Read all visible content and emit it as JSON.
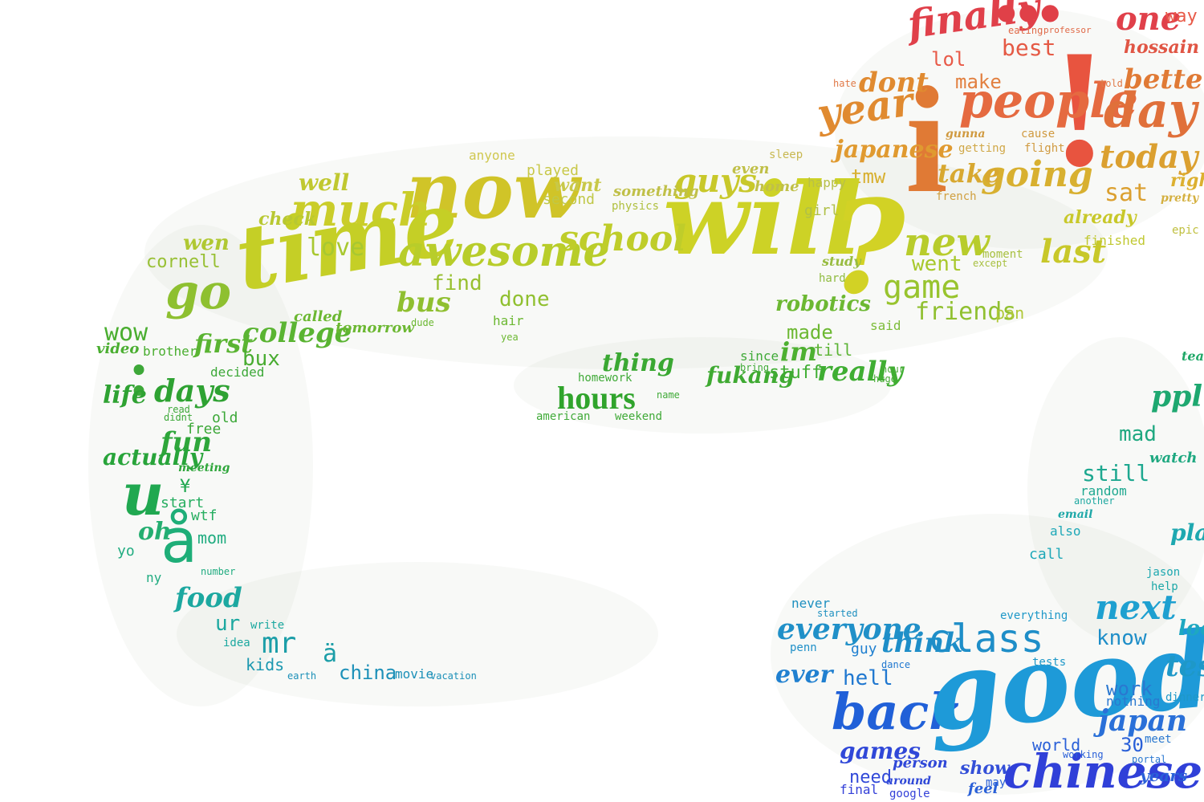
{
  "words": [
    {
      "t": "finally",
      "c": "#e0404a",
      "f": "s"
    },
    {
      "t": "•••",
      "c": "#e04048",
      "f": "b"
    },
    {
      "t": "one",
      "c": "#e0404a",
      "f": "s"
    },
    {
      "t": "way",
      "c": "#e85a48",
      "f": "m"
    },
    {
      "t": "best",
      "c": "#e55a45",
      "f": "m"
    },
    {
      "t": "lol",
      "c": "#e85a48",
      "f": "m"
    },
    {
      "t": "hossain",
      "c": "#e05544",
      "f": "s"
    },
    {
      "t": "!",
      "c": "#e8543f",
      "f": "b"
    },
    {
      "t": "i",
      "c": "#e07a35",
      "f": "b"
    },
    {
      "t": "people",
      "c": "#e56a40",
      "f": "s"
    },
    {
      "t": "day",
      "c": "#e0703a",
      "f": "s"
    },
    {
      "t": "better",
      "c": "#e07a35",
      "f": "s"
    },
    {
      "t": "make",
      "c": "#e28040",
      "f": "m"
    },
    {
      "t": "dont",
      "c": "#e08a30",
      "f": "s"
    },
    {
      "t": "year",
      "c": "#e08a30",
      "f": "s"
    },
    {
      "t": "japanese",
      "c": "#e09a30",
      "f": "s"
    },
    {
      "t": "tmw",
      "c": "#d8b030",
      "f": "m"
    },
    {
      "t": "going",
      "c": "#d8b030",
      "f": "s"
    },
    {
      "t": "take",
      "c": "#d8a830",
      "f": "s"
    },
    {
      "t": "today",
      "c": "#dba030",
      "f": "s"
    },
    {
      "t": "sat",
      "c": "#dba030",
      "f": "m"
    },
    {
      "t": "right",
      "c": "#dcb030",
      "f": "s"
    },
    {
      "t": "now",
      "c": "#d0c428",
      "f": "s"
    },
    {
      "t": "much",
      "c": "#cacd2a",
      "f": "s"
    },
    {
      "t": "time",
      "c": "#c5cf26",
      "f": "s"
    },
    {
      "t": "will",
      "c": "#cdd226",
      "f": "s"
    },
    {
      "t": "?",
      "c": "#d2d225",
      "f": "s"
    },
    {
      "t": "awesome",
      "c": "#b8cd2a",
      "f": "s"
    },
    {
      "t": "school",
      "c": "#bfcd2a",
      "f": "s"
    },
    {
      "t": "guys",
      "c": "#c8c82a",
      "f": "s"
    },
    {
      "t": "new",
      "c": "#b8cc2c",
      "f": "s"
    },
    {
      "t": "last",
      "c": "#c8c82a",
      "f": "s"
    },
    {
      "t": "already",
      "c": "#c8c82a",
      "f": "s"
    },
    {
      "t": "finished",
      "c": "#c0c830",
      "f": "m"
    },
    {
      "t": "went",
      "c": "#a8c82c",
      "f": "m"
    },
    {
      "t": "game",
      "c": "#98c42e",
      "f": "m"
    },
    {
      "t": "friends",
      "c": "#90c030",
      "f": "m"
    },
    {
      "t": "pan",
      "c": "#b0c838",
      "f": "m"
    },
    {
      "t": "love",
      "c": "#a8c830",
      "f": "m"
    },
    {
      "t": "well",
      "c": "#c0c830",
      "f": "s"
    },
    {
      "t": "check",
      "c": "#b8c832",
      "f": "s"
    },
    {
      "t": "wen",
      "c": "#b0c832",
      "f": "s"
    },
    {
      "t": "cornell",
      "c": "#98c034",
      "f": "m"
    },
    {
      "t": "go",
      "c": "#8ec030",
      "f": "s"
    },
    {
      "t": "find",
      "c": "#98c030",
      "f": "m"
    },
    {
      "t": "done",
      "c": "#90c030",
      "f": "m"
    },
    {
      "t": "bus",
      "c": "#8fbf30",
      "f": "s"
    },
    {
      "t": "played",
      "c": "#c8c848",
      "f": "m"
    },
    {
      "t": "anyone",
      "c": "#d0c850",
      "f": "m"
    },
    {
      "t": "want",
      "c": "#c8c848",
      "f": "s"
    },
    {
      "t": "second",
      "c": "#c0c848",
      "f": "m"
    },
    {
      "t": "something",
      "c": "#c0c048",
      "f": "s"
    },
    {
      "t": "physics",
      "c": "#b0c040",
      "f": "m"
    },
    {
      "t": "even",
      "c": "#c0c048",
      "f": "s"
    },
    {
      "t": "home",
      "c": "#c0c048",
      "f": "s"
    },
    {
      "t": "happy",
      "c": "#b8c048",
      "f": "m"
    },
    {
      "t": "girl",
      "c": "#b0c048",
      "f": "m"
    },
    {
      "t": "sleep",
      "c": "#c8b850",
      "f": "m"
    },
    {
      "t": "getting",
      "c": "#d0a848",
      "f": "m"
    },
    {
      "t": "french",
      "c": "#d0a040",
      "f": "m"
    },
    {
      "t": "flight",
      "c": "#d09a40",
      "f": "m"
    },
    {
      "t": "gunna",
      "c": "#d09a40",
      "f": "s"
    },
    {
      "t": "cause",
      "c": "#d09a40",
      "f": "m"
    },
    {
      "t": "eating",
      "c": "#e06a48",
      "f": "m"
    },
    {
      "t": "professor",
      "c": "#e06a48",
      "f": "m"
    },
    {
      "t": "told",
      "c": "#e07a48",
      "f": "m"
    },
    {
      "t": "hate",
      "c": "#e07a48",
      "f": "m"
    },
    {
      "t": "pretty",
      "c": "#d4b040",
      "f": "s"
    },
    {
      "t": "epic",
      "c": "#c0c040",
      "f": "m"
    },
    {
      "t": "moment",
      "c": "#a8c040",
      "f": "m"
    },
    {
      "t": "except",
      "c": "#a8c040",
      "f": "m"
    },
    {
      "t": "study",
      "c": "#98bc40",
      "f": "s"
    },
    {
      "t": "hard",
      "c": "#90bc40",
      "f": "m"
    },
    {
      "t": "robotics",
      "c": "#6cb832",
      "f": "s"
    },
    {
      "t": "made",
      "c": "#6cb832",
      "f": "m"
    },
    {
      "t": "said",
      "c": "#7cbc38",
      "f": "m"
    },
    {
      "t": "im",
      "c": "#4db030",
      "f": "s"
    },
    {
      "t": "till",
      "c": "#5cb435",
      "f": "m"
    },
    {
      "t": "really",
      "c": "#3fae32",
      "f": "s"
    },
    {
      "t": "stuff",
      "c": "#3fae32",
      "f": "m"
    },
    {
      "t": "fukang",
      "c": "#3faa32",
      "f": "s"
    },
    {
      "t": "thing",
      "c": "#3aa832",
      "f": "s"
    },
    {
      "t": "homework",
      "c": "#40aa38",
      "f": "m"
    },
    {
      "t": "hours",
      "c": "#30a42c",
      "f": "b"
    },
    {
      "t": "american",
      "c": "#40aa38",
      "f": "m"
    },
    {
      "t": "weekend",
      "c": "#40aa38",
      "f": "m"
    },
    {
      "t": "name",
      "c": "#40aa38",
      "f": "m"
    },
    {
      "t": "since",
      "c": "#40aa38",
      "f": "m"
    },
    {
      "t": "bring",
      "c": "#40aa38",
      "f": "m"
    },
    {
      "t": "hour",
      "c": "#4aac38",
      "f": "m"
    },
    {
      "t": "huge",
      "c": "#4aac38",
      "f": "m"
    },
    {
      "t": "college",
      "c": "#5ab432",
      "f": "s"
    },
    {
      "t": "first",
      "c": "#5ab432",
      "f": "s"
    },
    {
      "t": "tomorrow",
      "c": "#6cb832",
      "f": "s"
    },
    {
      "t": "called",
      "c": "#6cb832",
      "f": "s"
    },
    {
      "t": "hair",
      "c": "#6cb832",
      "f": "m"
    },
    {
      "t": "yea",
      "c": "#6cb832",
      "f": "m"
    },
    {
      "t": "dude",
      "c": "#6cb832",
      "f": "m"
    },
    {
      "t": "bux",
      "c": "#48ac30",
      "f": "m"
    },
    {
      "t": "wow",
      "c": "#4aae30",
      "f": "m"
    },
    {
      "t": "brother",
      "c": "#4aae30",
      "f": "m"
    },
    {
      "t": "video",
      "c": "#4aae30",
      "f": "s"
    },
    {
      "t": ":",
      "c": "#3da838",
      "f": "b"
    },
    {
      "t": "days",
      "c": "#2ea232",
      "f": "s"
    },
    {
      "t": "life",
      "c": "#2ea232",
      "f": "s"
    },
    {
      "t": "decided",
      "c": "#3ca838",
      "f": "m"
    },
    {
      "t": "old",
      "c": "#3ca838",
      "f": "m"
    },
    {
      "t": "free",
      "c": "#3ca838",
      "f": "m"
    },
    {
      "t": "didnt",
      "c": "#3ca838",
      "f": "m"
    },
    {
      "t": "read",
      "c": "#3ca838",
      "f": "m"
    },
    {
      "t": "fun",
      "c": "#2ea63a",
      "f": "s"
    },
    {
      "t": "meeting",
      "c": "#2ea63a",
      "f": "s"
    },
    {
      "t": "actually",
      "c": "#28a43a",
      "f": "s"
    },
    {
      "t": "u",
      "c": "#20a850",
      "f": "s"
    },
    {
      "t": "¥",
      "c": "#20a850",
      "f": "m"
    },
    {
      "t": "start",
      "c": "#26ae60",
      "f": "m"
    },
    {
      "t": "wtf",
      "c": "#26ae60",
      "f": "m"
    },
    {
      "t": "oh",
      "c": "#24ae70",
      "f": "s"
    },
    {
      "t": "å",
      "c": "#1eae78",
      "f": "m"
    },
    {
      "t": "mom",
      "c": "#20ac80",
      "f": "m"
    },
    {
      "t": "yo",
      "c": "#20ac80",
      "f": "m"
    },
    {
      "t": "ny",
      "c": "#20ac80",
      "f": "m"
    },
    {
      "t": "number",
      "c": "#20ac80",
      "f": "m"
    },
    {
      "t": "food",
      "c": "#1ca8a0",
      "f": "s"
    },
    {
      "t": "ur",
      "c": "#1ca8a0",
      "f": "m"
    },
    {
      "t": "write",
      "c": "#1ca8a0",
      "f": "m"
    },
    {
      "t": "idea",
      "c": "#1ca8a0",
      "f": "m"
    },
    {
      "t": "mr",
      "c": "#1c9ea8",
      "f": "m"
    },
    {
      "t": "ä",
      "c": "#1c9ea8",
      "f": "m"
    },
    {
      "t": "kids",
      "c": "#1c98b0",
      "f": "m"
    },
    {
      "t": "china",
      "c": "#1c90b8",
      "f": "m"
    },
    {
      "t": "movie",
      "c": "#1c90b8",
      "f": "m"
    },
    {
      "t": "vacation",
      "c": "#1c90b8",
      "f": "m"
    },
    {
      "t": "earth",
      "c": "#1c90b8",
      "f": "m"
    },
    {
      "t": "never",
      "c": "#1e90c0",
      "f": "m"
    },
    {
      "t": "started",
      "c": "#1e90c0",
      "f": "m"
    },
    {
      "t": "everyone",
      "c": "#2090c8",
      "f": "s"
    },
    {
      "t": "penn",
      "c": "#2090c8",
      "f": "m"
    },
    {
      "t": "think",
      "c": "#1e8ec8",
      "f": "s"
    },
    {
      "t": "class",
      "c": "#1e8ec8",
      "f": "m"
    },
    {
      "t": "ever",
      "c": "#2080d0",
      "f": "s"
    },
    {
      "t": "guy",
      "c": "#2080d0",
      "f": "m"
    },
    {
      "t": "hell",
      "c": "#2078d0",
      "f": "m"
    },
    {
      "t": "dance",
      "c": "#2078d0",
      "f": "m"
    },
    {
      "t": "back",
      "c": "#2060d8",
      "f": "s"
    },
    {
      "t": "good",
      "c": "#1e9ad8",
      "f": "s"
    },
    {
      "t": "games",
      "c": "#3048d8",
      "f": "s"
    },
    {
      "t": "need",
      "c": "#3048d8",
      "f": "m"
    },
    {
      "t": "person",
      "c": "#3048d8",
      "f": "s"
    },
    {
      "t": "around",
      "c": "#3048d8",
      "f": "s"
    },
    {
      "t": "final",
      "c": "#3440d8",
      "f": "m"
    },
    {
      "t": "google",
      "c": "#3440d8",
      "f": "m"
    },
    {
      "t": "show",
      "c": "#3450d8",
      "f": "s"
    },
    {
      "t": "chinese",
      "c": "#3040d8",
      "f": "s"
    },
    {
      "t": "world",
      "c": "#2a60d8",
      "f": "m"
    },
    {
      "t": "30",
      "c": "#2a60d8",
      "f": "m"
    },
    {
      "t": "working",
      "c": "#2a60d8",
      "f": "m"
    },
    {
      "t": "feel",
      "c": "#2a60d8",
      "f": "s"
    },
    {
      "t": "may",
      "c": "#2a60d8",
      "f": "m"
    },
    {
      "t": "years",
      "c": "#2a60d8",
      "f": "s"
    },
    {
      "t": "japan",
      "c": "#2a70d8",
      "f": "s"
    },
    {
      "t": "work",
      "c": "#2a78d0",
      "f": "m"
    },
    {
      "t": "nothing",
      "c": "#2a78d0",
      "f": "m"
    },
    {
      "t": "meet",
      "c": "#2a78d0",
      "f": "m"
    },
    {
      "t": "portal",
      "c": "#2a78d0",
      "f": "m"
    },
    {
      "t": "know",
      "c": "#1e8ec8",
      "f": "m"
    },
    {
      "t": "next",
      "c": "#1ea0d0",
      "f": "s"
    },
    {
      "t": "test",
      "c": "#1e98c8",
      "f": "s"
    },
    {
      "t": "dinner",
      "c": "#1e98c8",
      "f": "m"
    },
    {
      "t": "tests",
      "c": "#1e98c8",
      "f": "m"
    },
    {
      "t": "everything",
      "c": "#1e98c8",
      "f": "m"
    },
    {
      "t": "look",
      "c": "#1ea8c0",
      "f": "s"
    },
    {
      "t": "call",
      "c": "#1ea8b8",
      "f": "m"
    },
    {
      "t": "also",
      "c": "#1ea8b8",
      "f": "m"
    },
    {
      "t": "play",
      "c": "#1ea8b0",
      "f": "s"
    },
    {
      "t": "jason",
      "c": "#1ea8b0",
      "f": "m"
    },
    {
      "t": "still",
      "c": "#1ea890",
      "f": "m"
    },
    {
      "t": "random",
      "c": "#1ea890",
      "f": "m"
    },
    {
      "t": "mad",
      "c": "#1ea880",
      "f": "m"
    },
    {
      "t": "watch",
      "c": "#1ea880",
      "f": "s"
    },
    {
      "t": "ppl",
      "c": "#1ea870",
      "f": "s"
    },
    {
      "t": "teacher",
      "c": "#20a868",
      "f": "s"
    },
    {
      "t": "help",
      "c": "#1ea8a8",
      "f": "m"
    },
    {
      "t": "another",
      "c": "#1ea8a0",
      "f": "m"
    },
    {
      "t": "email",
      "c": "#1ea8a8",
      "f": "s"
    }
  ]
}
